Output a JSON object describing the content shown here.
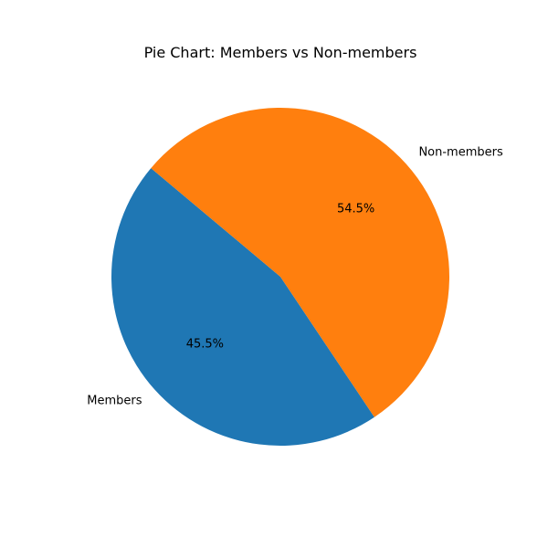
{
  "chart_data": {
    "type": "pie",
    "title": "Pie Chart: Members vs Non-members",
    "categories": [
      "Members",
      "Non-members"
    ],
    "values": [
      45.5,
      54.5
    ],
    "percent_labels": [
      "45.5%",
      "54.5%"
    ],
    "colors": [
      "#1f77b4",
      "#ff7f0e"
    ],
    "start_angle_deg": 140,
    "direction": "counterclockwise",
    "legend": "none"
  }
}
